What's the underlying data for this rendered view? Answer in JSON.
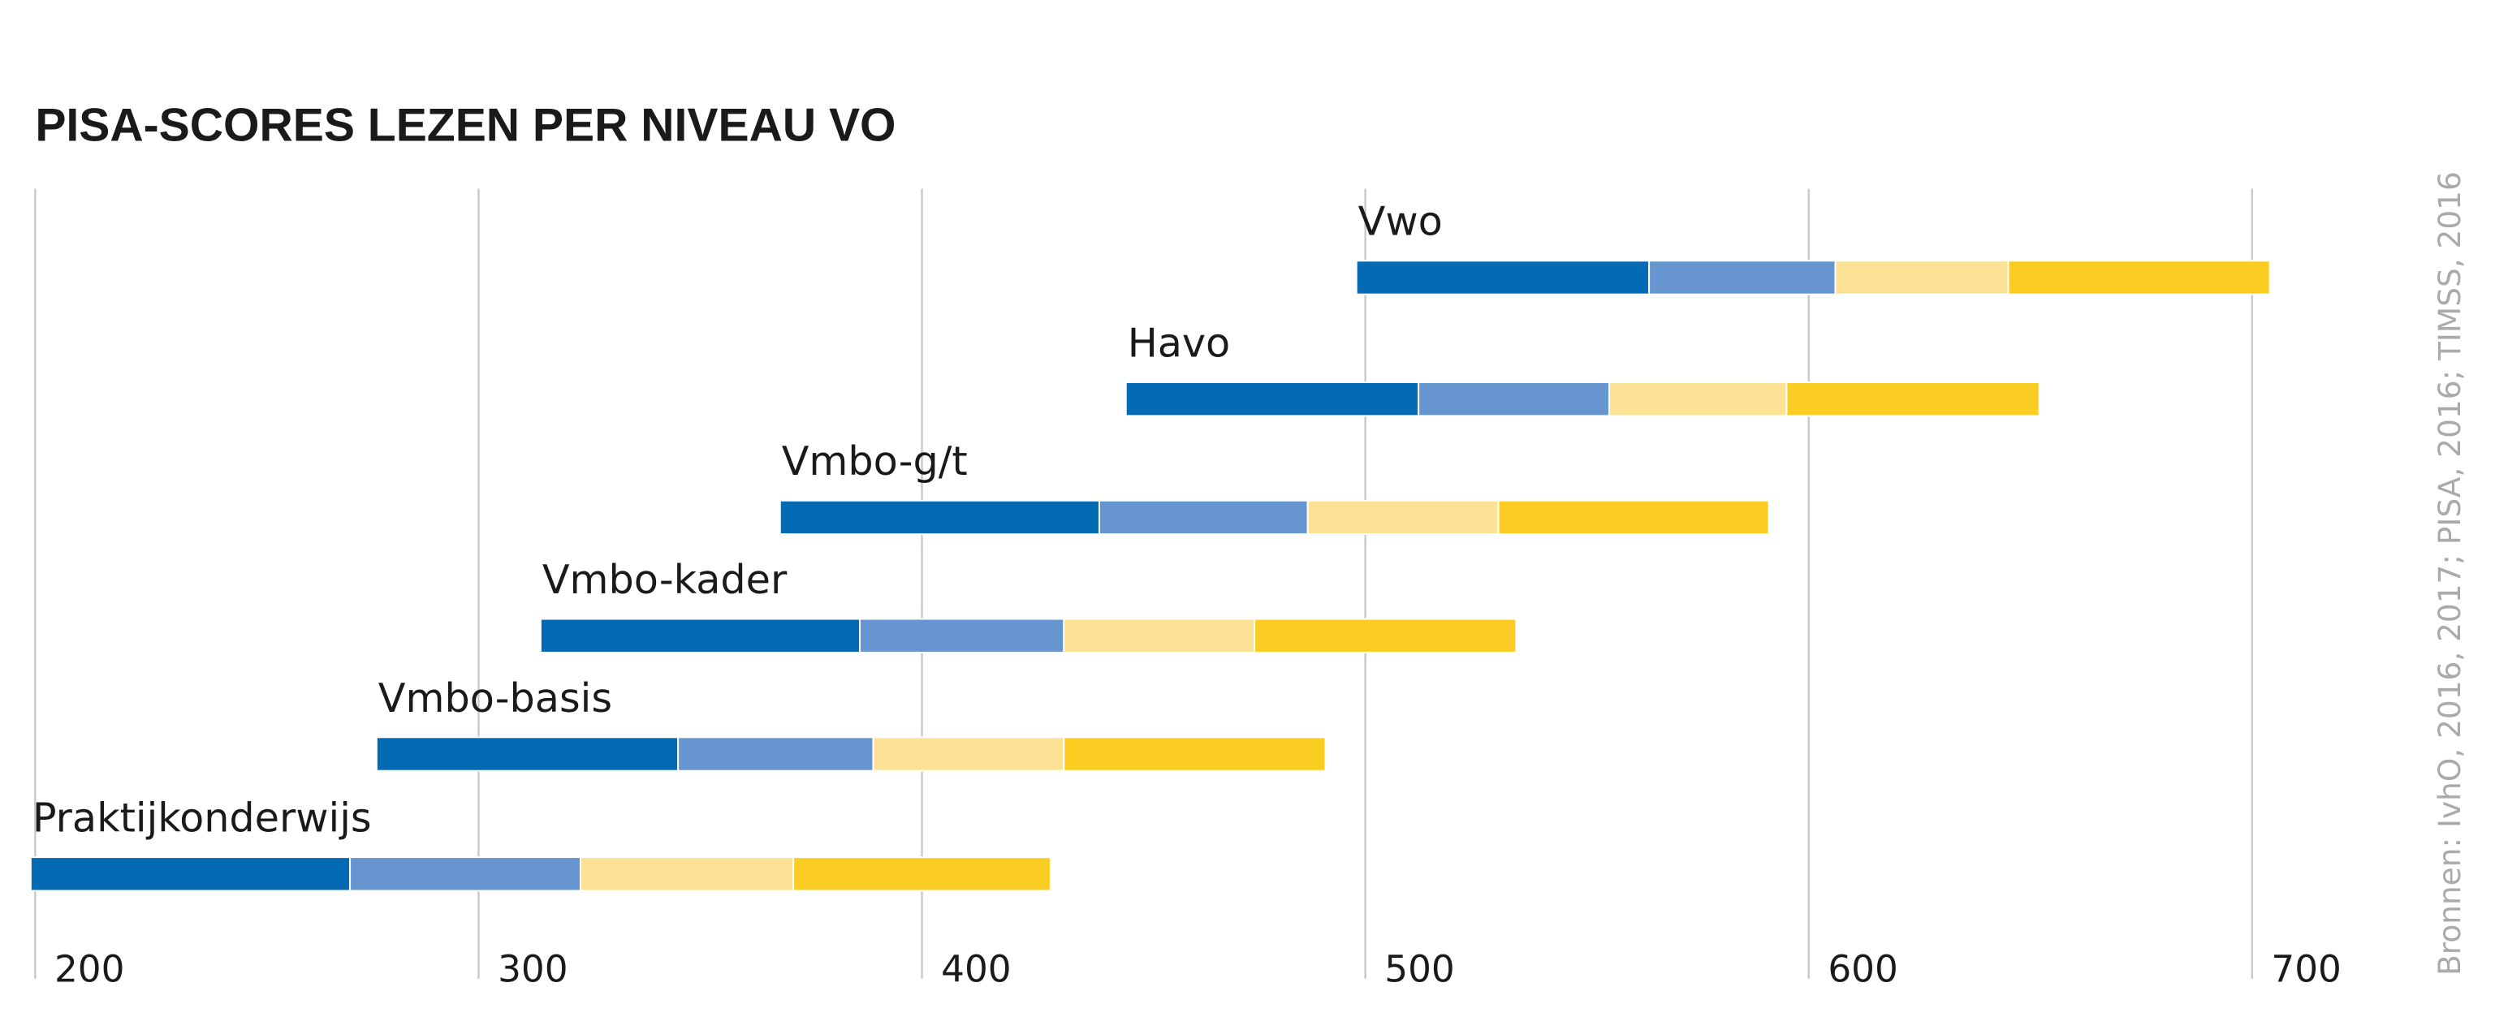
{
  "chart_data": {
    "type": "bar",
    "subtype": "horizontal-floating-stacked",
    "title": "PISA-SCORES LEZEN PER NIVEAU VO",
    "source": "Bronnen: IvhO, 2016, 2017; PISA, 2016; TIMSS, 2016",
    "xlim": [
      200,
      700
    ],
    "xticks": [
      200,
      300,
      400,
      500,
      600,
      700
    ],
    "grid": true,
    "colors": [
      "#036ab3",
      "#6795cf",
      "#fde295",
      "#fbcc22"
    ],
    "categories": [
      "Vwo",
      "Havo",
      "Vmbo-g/t",
      "Vmbo-kader",
      "Vmbo-basis",
      "Praktijkonderwijs"
    ],
    "segment_bounds": [
      [
        498,
        564,
        606,
        645,
        704
      ],
      [
        446,
        512,
        555,
        595,
        652
      ],
      [
        368,
        440,
        487,
        530,
        591
      ],
      [
        314,
        386,
        432,
        475,
        534
      ],
      [
        277,
        345,
        389,
        432,
        491
      ],
      [
        199,
        271,
        323,
        371,
        429
      ]
    ]
  }
}
